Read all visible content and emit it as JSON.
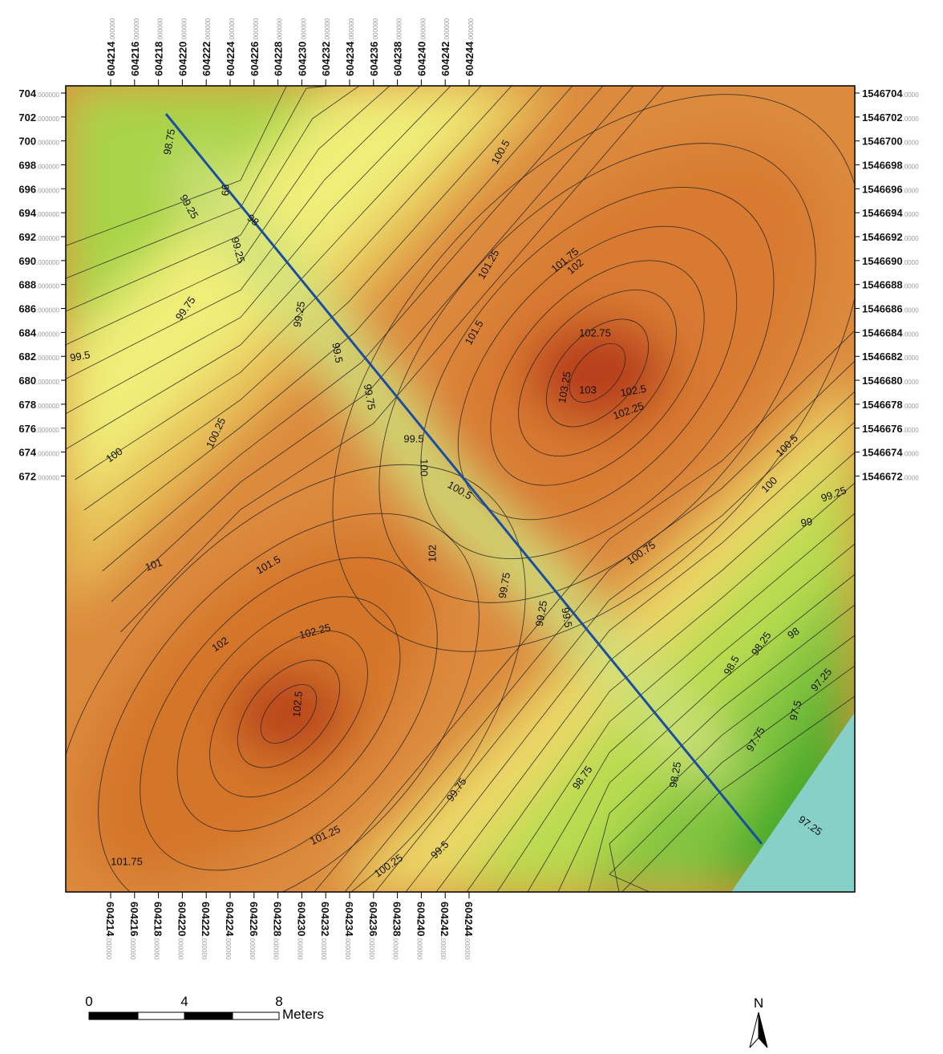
{
  "x_ticks": [
    "604214",
    "604216",
    "604218",
    "604220",
    "604222",
    "604224",
    "604226",
    "604228",
    "604230",
    "604232",
    "604234",
    "604236",
    "604238",
    "604240",
    "604242",
    "604244"
  ],
  "x_tick_decimal": ".000000",
  "left_ticks": [
    "704",
    "702",
    "700",
    "698",
    "696",
    "694",
    "692",
    "690",
    "688",
    "686",
    "684",
    "682",
    "680",
    "678",
    "676",
    "674",
    "672"
  ],
  "left_tick_decimal": ".000000",
  "right_ticks": [
    "1546704",
    "1546702",
    "1546700",
    "1546698",
    "1546696",
    "1546694",
    "1546692",
    "1546690",
    "1546688",
    "1546686",
    "1546684",
    "1546682",
    "1546680",
    "1546678",
    "1546676",
    "1546674",
    "1546672"
  ],
  "right_tick_decimal": ".0000",
  "contour_labels": [
    "98.75",
    "99",
    "99.25",
    "98",
    "99.25",
    "99.75",
    "99.5",
    "99.25",
    "99.5",
    "99.75",
    "99.5",
    "100",
    "100.5",
    "100",
    "100.25",
    "101.5",
    "102.75",
    "103.25",
    "103",
    "102.5",
    "102.25",
    "100.5",
    "100",
    "99.25",
    "99",
    "100.75",
    "102",
    "101",
    "101.5",
    "99.75",
    "99.25",
    "99.5",
    "102",
    "102.25",
    "102.5",
    "98.5",
    "98.25",
    "98",
    "97.25",
    "97.5",
    "97.75",
    "98.25",
    "98.75",
    "99.75",
    "99.5",
    "101.25",
    "100.25",
    "101.75",
    "97.25",
    "100.5",
    "101.25",
    "101.75",
    "102"
  ],
  "scale_bar": {
    "labels": [
      "0",
      "4",
      "8"
    ],
    "unit": "Meters"
  },
  "north_arrow": "N"
}
